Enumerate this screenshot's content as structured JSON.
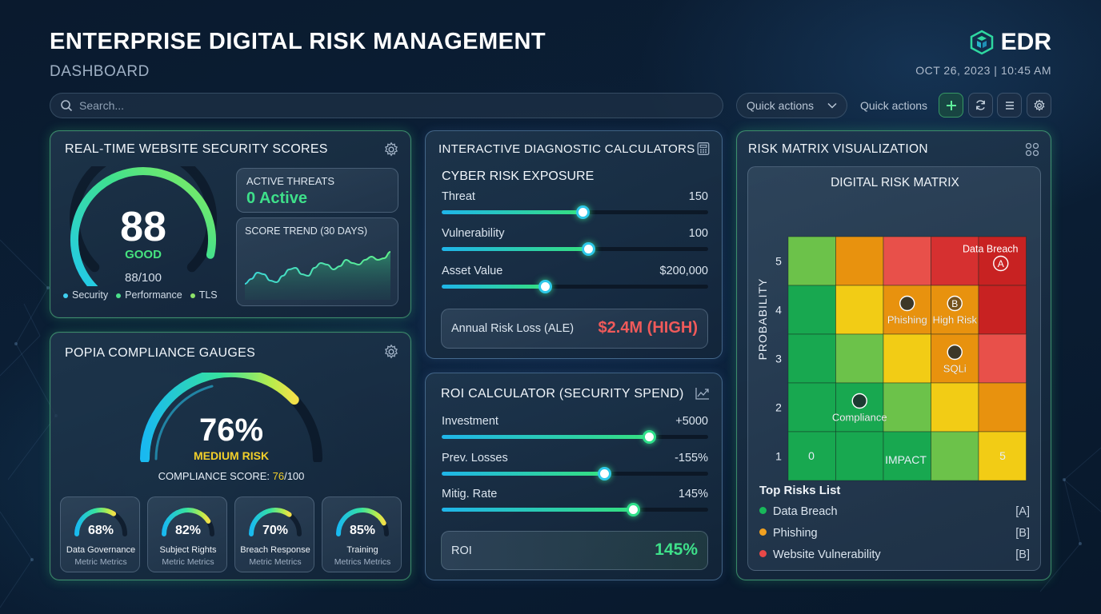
{
  "header": {
    "title": "ENTERPRISE DIGITAL RISK MANAGEMENT",
    "subtitle": "DASHBOARD",
    "brand": "EDR",
    "datetime": "OCT 26, 2023 | 10:45 AM"
  },
  "toolbar": {
    "search_placeholder": "Search...",
    "quick_actions_dropdown": "Quick actions",
    "quick_actions_label": "Quick actions",
    "buttons": [
      "plus-icon",
      "refresh-icon",
      "menu-icon",
      "gear-icon"
    ]
  },
  "security_scores": {
    "title": "REAL-TIME WEBSITE SECURITY SCORES",
    "score": "88",
    "score_value": 88,
    "score_max": 100,
    "rating": "GOOD",
    "score_text": "88/100",
    "legend": [
      {
        "label": "Security",
        "color": "#3fd0f0"
      },
      {
        "label": "Performance",
        "color": "#4be08a"
      },
      {
        "label": "TLS",
        "color": "#8fe36a"
      }
    ],
    "active_threats_label": "ACTIVE THREATS",
    "active_threats_value": "0 Active",
    "trend_label": "SCORE TREND (30 DAYS)",
    "trend_values": [
      40,
      46,
      54,
      52,
      44,
      42,
      50,
      58,
      60,
      52,
      50,
      60,
      66,
      64,
      58,
      62,
      70,
      66,
      64,
      70,
      74,
      70,
      72,
      80
    ]
  },
  "popia": {
    "title": "POPIA COMPLIANCE GAUGES",
    "percent": "76%",
    "percent_value": 76,
    "risk_label": "MEDIUM RISK",
    "compliance_prefix": "COMPLIANCE SCORE: ",
    "compliance_value": "76",
    "compliance_suffix": "/100",
    "metrics": [
      {
        "pct": "68%",
        "value": 68,
        "name": "Data Governance",
        "sub": "Metric Metrics"
      },
      {
        "pct": "82%",
        "value": 82,
        "name": "Subject Rights",
        "sub": "Metric Metrics"
      },
      {
        "pct": "70%",
        "value": 70,
        "name": "Breach Response",
        "sub": "Metric Metrics"
      },
      {
        "pct": "85%",
        "value": 85,
        "name": "Training",
        "sub": "Metrics Metrics"
      }
    ]
  },
  "diagnostic": {
    "title": "INTERACTIVE DIAGNOSTIC CALCULATORS",
    "section": "CYBER RISK EXPOSURE",
    "sliders": [
      {
        "label": "Threat",
        "value": "150",
        "level": 0.53
      },
      {
        "label": "Vulnerability",
        "value": "100",
        "level": 0.55
      },
      {
        "label": "Asset Value",
        "value": "$200,000",
        "level": 0.39
      }
    ],
    "result_label": "Annual Risk Loss (ALE)",
    "result_value": "$2.4M (HIGH)"
  },
  "roi": {
    "title": "ROI CALCULATOR (SECURITY SPEND)",
    "sliders": [
      {
        "label": "Investment",
        "value": "+5000",
        "level": 0.78
      },
      {
        "label": "Prev. Losses",
        "value": "-155%",
        "level": 0.61
      },
      {
        "label": "Mitig. Rate",
        "value": "145%",
        "level": 0.72
      }
    ],
    "result_label": "ROI",
    "result_value": "145%"
  },
  "risk_matrix": {
    "title": "RISK MATRIX VISUALIZATION",
    "chart_title": "DIGITAL RISK MATRIX",
    "y_label": "PROBABILITY",
    "x_label": "IMPACT",
    "y_ticks": [
      "5",
      "4",
      "3",
      "2",
      "1"
    ],
    "x_min": "0",
    "x_max": "5",
    "cells": [
      [
        "#6cc24a",
        "#e8920e",
        "#e8504a",
        "#d63030",
        "#c82222"
      ],
      [
        "#18a850",
        "#f2cc15",
        "#e8920e",
        "#e8920e",
        "#c82222"
      ],
      [
        "#18a850",
        "#6cc24a",
        "#f2cc15",
        "#e8920e",
        "#e8504a"
      ],
      [
        "#18a850",
        "#18a850",
        "#6cc24a",
        "#f2cc15",
        "#e8920e"
      ],
      [
        "#18a850",
        "#18a850",
        "#18a850",
        "#6cc24a",
        "#f2cc15"
      ]
    ],
    "markers": [
      {
        "label": "Data Breach",
        "badge": "A",
        "row": 0,
        "col": 4
      },
      {
        "label": "Phishing",
        "badge": "",
        "row": 1,
        "col": 2
      },
      {
        "label": "High Risk",
        "badge": "B",
        "row": 1,
        "col": 3
      },
      {
        "label": "SQLi",
        "badge": "",
        "row": 2,
        "col": 3
      },
      {
        "label": "Compliance",
        "badge": "",
        "row": 3,
        "col": 1
      }
    ],
    "top_risks_title": "Top Risks List",
    "top_risks": [
      {
        "label": "Data Breach",
        "tag": "[A]",
        "color": "#18b85a"
      },
      {
        "label": "Phishing",
        "tag": "[B]",
        "color": "#f0a020"
      },
      {
        "label": "Website Vulnerability",
        "tag": "[B]",
        "color": "#e84848"
      }
    ]
  }
}
